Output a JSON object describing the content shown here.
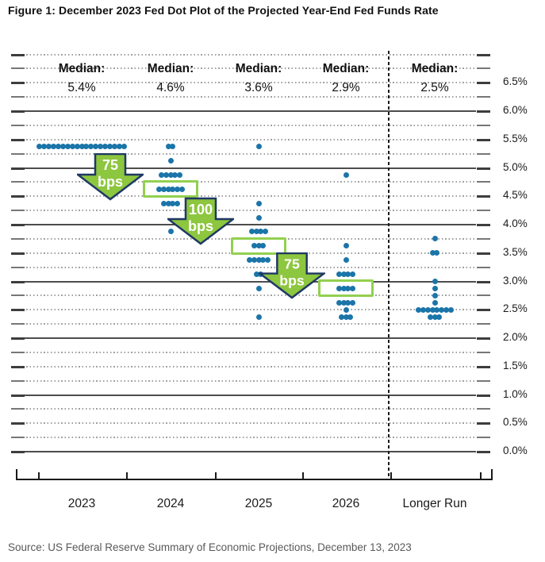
{
  "title": "Figure 1: December 2023 Fed Dot Plot of the Projected Year-End Fed Funds Rate",
  "source": "Source: US Federal Reserve Summary of Economic Projections, December 13, 2023",
  "chart_data": {
    "type": "scatter",
    "title": "December 2023 Fed Dot Plot of the Projected Year-End Fed Funds Rate",
    "ylabel": "Fed Funds Rate",
    "ylim": [
      0.0,
      7.0
    ],
    "grid": "dotted line every 0.25%, solid line every 1.0%",
    "legend_position": "none",
    "y_axis_ticks": [
      {
        "value": 6.5,
        "label": "6.5%"
      },
      {
        "value": 6.0,
        "label": "6.0%"
      },
      {
        "value": 5.5,
        "label": "5.5%"
      },
      {
        "value": 5.0,
        "label": "5.0%"
      },
      {
        "value": 4.5,
        "label": "4.5%"
      },
      {
        "value": 4.0,
        "label": "4.0%"
      },
      {
        "value": 3.5,
        "label": "3.5%"
      },
      {
        "value": 3.0,
        "label": "3.0%"
      },
      {
        "value": 2.5,
        "label": "2.5%"
      },
      {
        "value": 2.0,
        "label": "2.0%"
      },
      {
        "value": 1.5,
        "label": "1.5%"
      },
      {
        "value": 1.0,
        "label": "1.0%"
      },
      {
        "value": 0.5,
        "label": "0.5%"
      },
      {
        "value": 0.0,
        "label": "0.0%"
      }
    ],
    "columns": [
      {
        "label": "2023",
        "median_label": "Median:",
        "median_value": "5.4%",
        "median_box_rate": null,
        "dots": [
          {
            "rate": 5.375,
            "count": 19
          }
        ]
      },
      {
        "label": "2024",
        "median_label": "Median:",
        "median_value": "4.6%",
        "median_box_rate": 4.625,
        "dots": [
          {
            "rate": 5.375,
            "count": 2
          },
          {
            "rate": 5.125,
            "count": 1
          },
          {
            "rate": 4.875,
            "count": 5
          },
          {
            "rate": 4.625,
            "count": 6
          },
          {
            "rate": 4.375,
            "count": 4
          },
          {
            "rate": 3.875,
            "count": 1
          }
        ]
      },
      {
        "label": "2025",
        "median_label": "Median:",
        "median_value": "3.6%",
        "median_box_rate": 3.625,
        "dots": [
          {
            "rate": 5.375,
            "count": 1
          },
          {
            "rate": 4.375,
            "count": 1
          },
          {
            "rate": 4.125,
            "count": 1
          },
          {
            "rate": 3.875,
            "count": 4
          },
          {
            "rate": 3.625,
            "count": 3
          },
          {
            "rate": 3.375,
            "count": 5
          },
          {
            "rate": 3.125,
            "count": 2
          },
          {
            "rate": 2.875,
            "count": 1
          },
          {
            "rate": 2.375,
            "count": 1
          }
        ]
      },
      {
        "label": "2026",
        "median_label": "Median:",
        "median_value": "2.9%",
        "median_box_rate": 2.875,
        "dots": [
          {
            "rate": 4.875,
            "count": 1
          },
          {
            "rate": 3.625,
            "count": 1
          },
          {
            "rate": 3.375,
            "count": 1
          },
          {
            "rate": 3.125,
            "count": 4
          },
          {
            "rate": 2.875,
            "count": 4
          },
          {
            "rate": 2.625,
            "count": 4
          },
          {
            "rate": 2.5,
            "count": 1
          },
          {
            "rate": 2.375,
            "count": 3
          }
        ]
      },
      {
        "label": "Longer Run",
        "median_label": "Median:",
        "median_value": "2.5%",
        "median_box_rate": null,
        "dots": [
          {
            "rate": 3.75,
            "count": 1
          },
          {
            "rate": 3.5,
            "count": 2
          },
          {
            "rate": 3.0,
            "count": 1
          },
          {
            "rate": 2.875,
            "count": 1
          },
          {
            "rate": 2.75,
            "count": 1
          },
          {
            "rate": 2.625,
            "count": 1
          },
          {
            "rate": 2.5,
            "count": 8
          },
          {
            "rate": 2.375,
            "count": 3
          }
        ]
      }
    ],
    "arrows": [
      {
        "line1": "75",
        "line2": "bps",
        "between": "2023-2024"
      },
      {
        "line1": "100",
        "line2": "bps",
        "between": "2024-2025"
      },
      {
        "line1": "75",
        "line2": "bps",
        "between": "2025-2026"
      }
    ],
    "colors": {
      "dot": "#1B75A8",
      "arrow_fill": "#8DC63F",
      "arrow_border": "#1F3864",
      "arrow_text": "#FFFFFF",
      "median_box_border": "#92D050",
      "solid_grid": "#4d4d4d",
      "dotted_grid": "#a0a0a0",
      "axis_line": "#1a1a1a",
      "source_text": "#595959"
    }
  }
}
